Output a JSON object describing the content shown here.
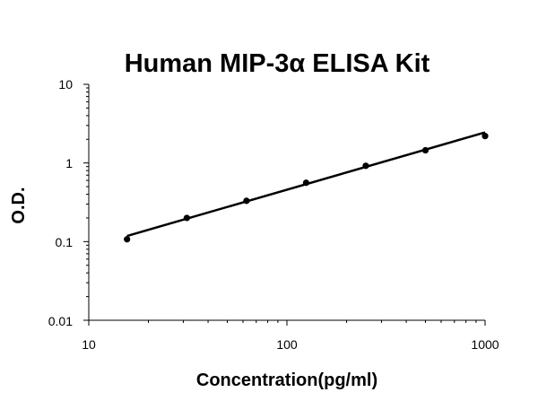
{
  "chart_data": {
    "type": "scatter",
    "title": "Human MIP-3α ELISA Kit",
    "xlabel": "Concentration(pg/ml)",
    "ylabel": "O.D.",
    "x_scale": "log",
    "y_scale": "log",
    "xlim": [
      10,
      1000
    ],
    "ylim": [
      0.01,
      10
    ],
    "x_tick_labels": [
      "10",
      "100",
      "1000"
    ],
    "y_tick_labels": [
      "10",
      "1",
      "0.1",
      "0.01"
    ],
    "grid": false,
    "points": [
      {
        "x": 15.6,
        "y": 0.107
      },
      {
        "x": 31.25,
        "y": 0.2
      },
      {
        "x": 62.5,
        "y": 0.33
      },
      {
        "x": 125,
        "y": 0.56
      },
      {
        "x": 250,
        "y": 0.92
      },
      {
        "x": 500,
        "y": 1.45
      },
      {
        "x": 1000,
        "y": 2.2
      }
    ],
    "fit_line": {
      "x": [
        15.6,
        1000
      ],
      "y": [
        0.118,
        2.45
      ]
    }
  }
}
